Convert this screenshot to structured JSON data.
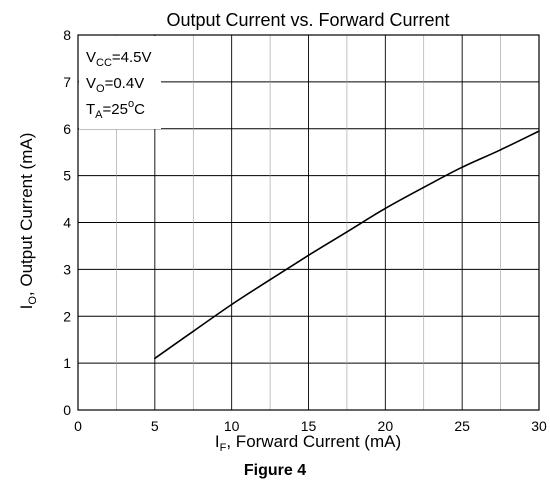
{
  "chart_data": {
    "type": "line",
    "title": "Output Current vs. Forward Current",
    "xlabel": {
      "main": "I",
      "sub": "F",
      "rest": ", Forward Current (mA)"
    },
    "ylabel": {
      "main": "I",
      "sub": "O",
      "rest": ", Output Current (mA)"
    },
    "xlim": [
      0,
      30
    ],
    "ylim": [
      0,
      8
    ],
    "xticks": [
      0,
      5,
      10,
      15,
      20,
      25,
      30
    ],
    "yticks": [
      0,
      1,
      2,
      3,
      4,
      5,
      6,
      7,
      8
    ],
    "grid": true,
    "series": [
      {
        "x": [
          5,
          7.5,
          10,
          12.5,
          15,
          17.5,
          20,
          22.5,
          25,
          27.5,
          30
        ],
        "y": [
          1.1,
          1.68,
          2.25,
          2.78,
          3.3,
          3.8,
          4.3,
          4.75,
          5.18,
          5.55,
          5.95
        ],
        "color": "#000000"
      }
    ],
    "annotations": [
      {
        "main": "V",
        "sub": "CC",
        "rest": "=4.5V"
      },
      {
        "main": "V",
        "sub": "O",
        "rest": "=0.4V"
      },
      {
        "main": "T",
        "sub": "A",
        "rest": "=25",
        "sup": "o",
        "tail": "C"
      }
    ]
  },
  "caption": "Figure 4"
}
